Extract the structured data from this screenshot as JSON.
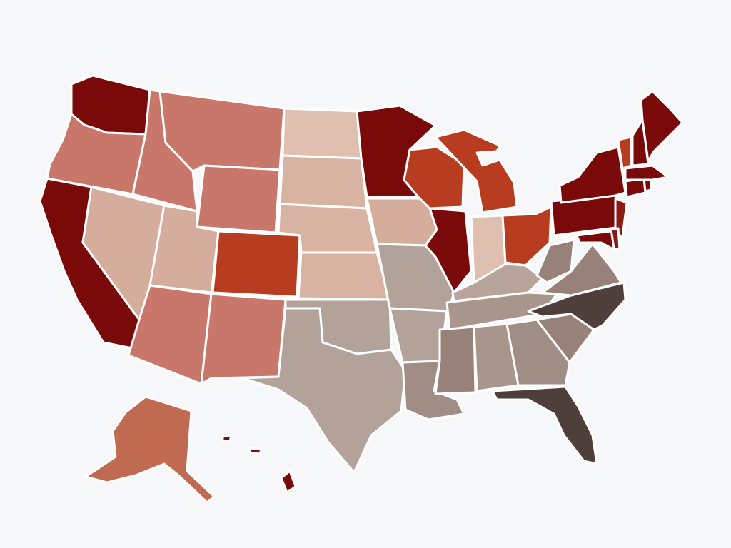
{
  "map": {
    "type": "choropleth",
    "region": "United States",
    "legend": "none",
    "title": "",
    "palette": {
      "darkest_red": "#7a0a0a",
      "orange_red": "#b83c20",
      "mid_salmon": "#c8776a",
      "light_salmon": "#d5ad9c",
      "taupe": "#b3a29a",
      "mid_brown": "#978178",
      "dark_brown": "#4f3f3a"
    },
    "states": [
      {
        "code": "WA",
        "color": "#7a0a0a"
      },
      {
        "code": "OR",
        "color": "#c8776a"
      },
      {
        "code": "CA",
        "color": "#7a0a0a"
      },
      {
        "code": "ID",
        "color": "#c8776a"
      },
      {
        "code": "NV",
        "color": "#d5ad9c"
      },
      {
        "code": "MT",
        "color": "#c8776a"
      },
      {
        "code": "WY",
        "color": "#c8776a"
      },
      {
        "code": "UT",
        "color": "#d5ad9c"
      },
      {
        "code": "CO",
        "color": "#b83c20"
      },
      {
        "code": "AZ",
        "color": "#c8776a"
      },
      {
        "code": "NM",
        "color": "#c8776a"
      },
      {
        "code": "ND",
        "color": "#dfc0b0"
      },
      {
        "code": "SD",
        "color": "#d8b3a1"
      },
      {
        "code": "NE",
        "color": "#d8b3a1"
      },
      {
        "code": "KS",
        "color": "#d8b3a1"
      },
      {
        "code": "OK",
        "color": "#b3a29a"
      },
      {
        "code": "TX",
        "color": "#b3a29a"
      },
      {
        "code": "MN",
        "color": "#7a0a0a"
      },
      {
        "code": "IA",
        "color": "#d5ad9c"
      },
      {
        "code": "MO",
        "color": "#b3a29a"
      },
      {
        "code": "AR",
        "color": "#b3a29a"
      },
      {
        "code": "LA",
        "color": "#a08e86"
      },
      {
        "code": "WI",
        "color": "#b83c20"
      },
      {
        "code": "IL",
        "color": "#7a0a0a"
      },
      {
        "code": "MI",
        "color": "#b83c20"
      },
      {
        "code": "IN",
        "color": "#dfc0b0"
      },
      {
        "code": "OH",
        "color": "#b83c20"
      },
      {
        "code": "KY",
        "color": "#b8a49a"
      },
      {
        "code": "TN",
        "color": "#a8958c"
      },
      {
        "code": "MS",
        "color": "#978178"
      },
      {
        "code": "AL",
        "color": "#a8958c"
      },
      {
        "code": "GA",
        "color": "#a08e86"
      },
      {
        "code": "FL",
        "color": "#4f3f3a"
      },
      {
        "code": "SC",
        "color": "#978178"
      },
      {
        "code": "NC",
        "color": "#4f3f3a"
      },
      {
        "code": "VA",
        "color": "#978178"
      },
      {
        "code": "WV",
        "color": "#978178"
      },
      {
        "code": "PA",
        "color": "#7a0a0a"
      },
      {
        "code": "NY",
        "color": "#7a0a0a"
      },
      {
        "code": "NJ",
        "color": "#8a1a12"
      },
      {
        "code": "MD",
        "color": "#7a0a0a"
      },
      {
        "code": "DE",
        "color": "#8a1a12"
      },
      {
        "code": "CT",
        "color": "#7a0a0a"
      },
      {
        "code": "RI",
        "color": "#7a0a0a"
      },
      {
        "code": "MA",
        "color": "#7a0a0a"
      },
      {
        "code": "VT",
        "color": "#b83c20"
      },
      {
        "code": "NH",
        "color": "#7a0a0a"
      },
      {
        "code": "ME",
        "color": "#7a0a0a"
      },
      {
        "code": "AK",
        "color": "#c06a52"
      },
      {
        "code": "HI",
        "color": "#7a0a0a"
      }
    ]
  }
}
